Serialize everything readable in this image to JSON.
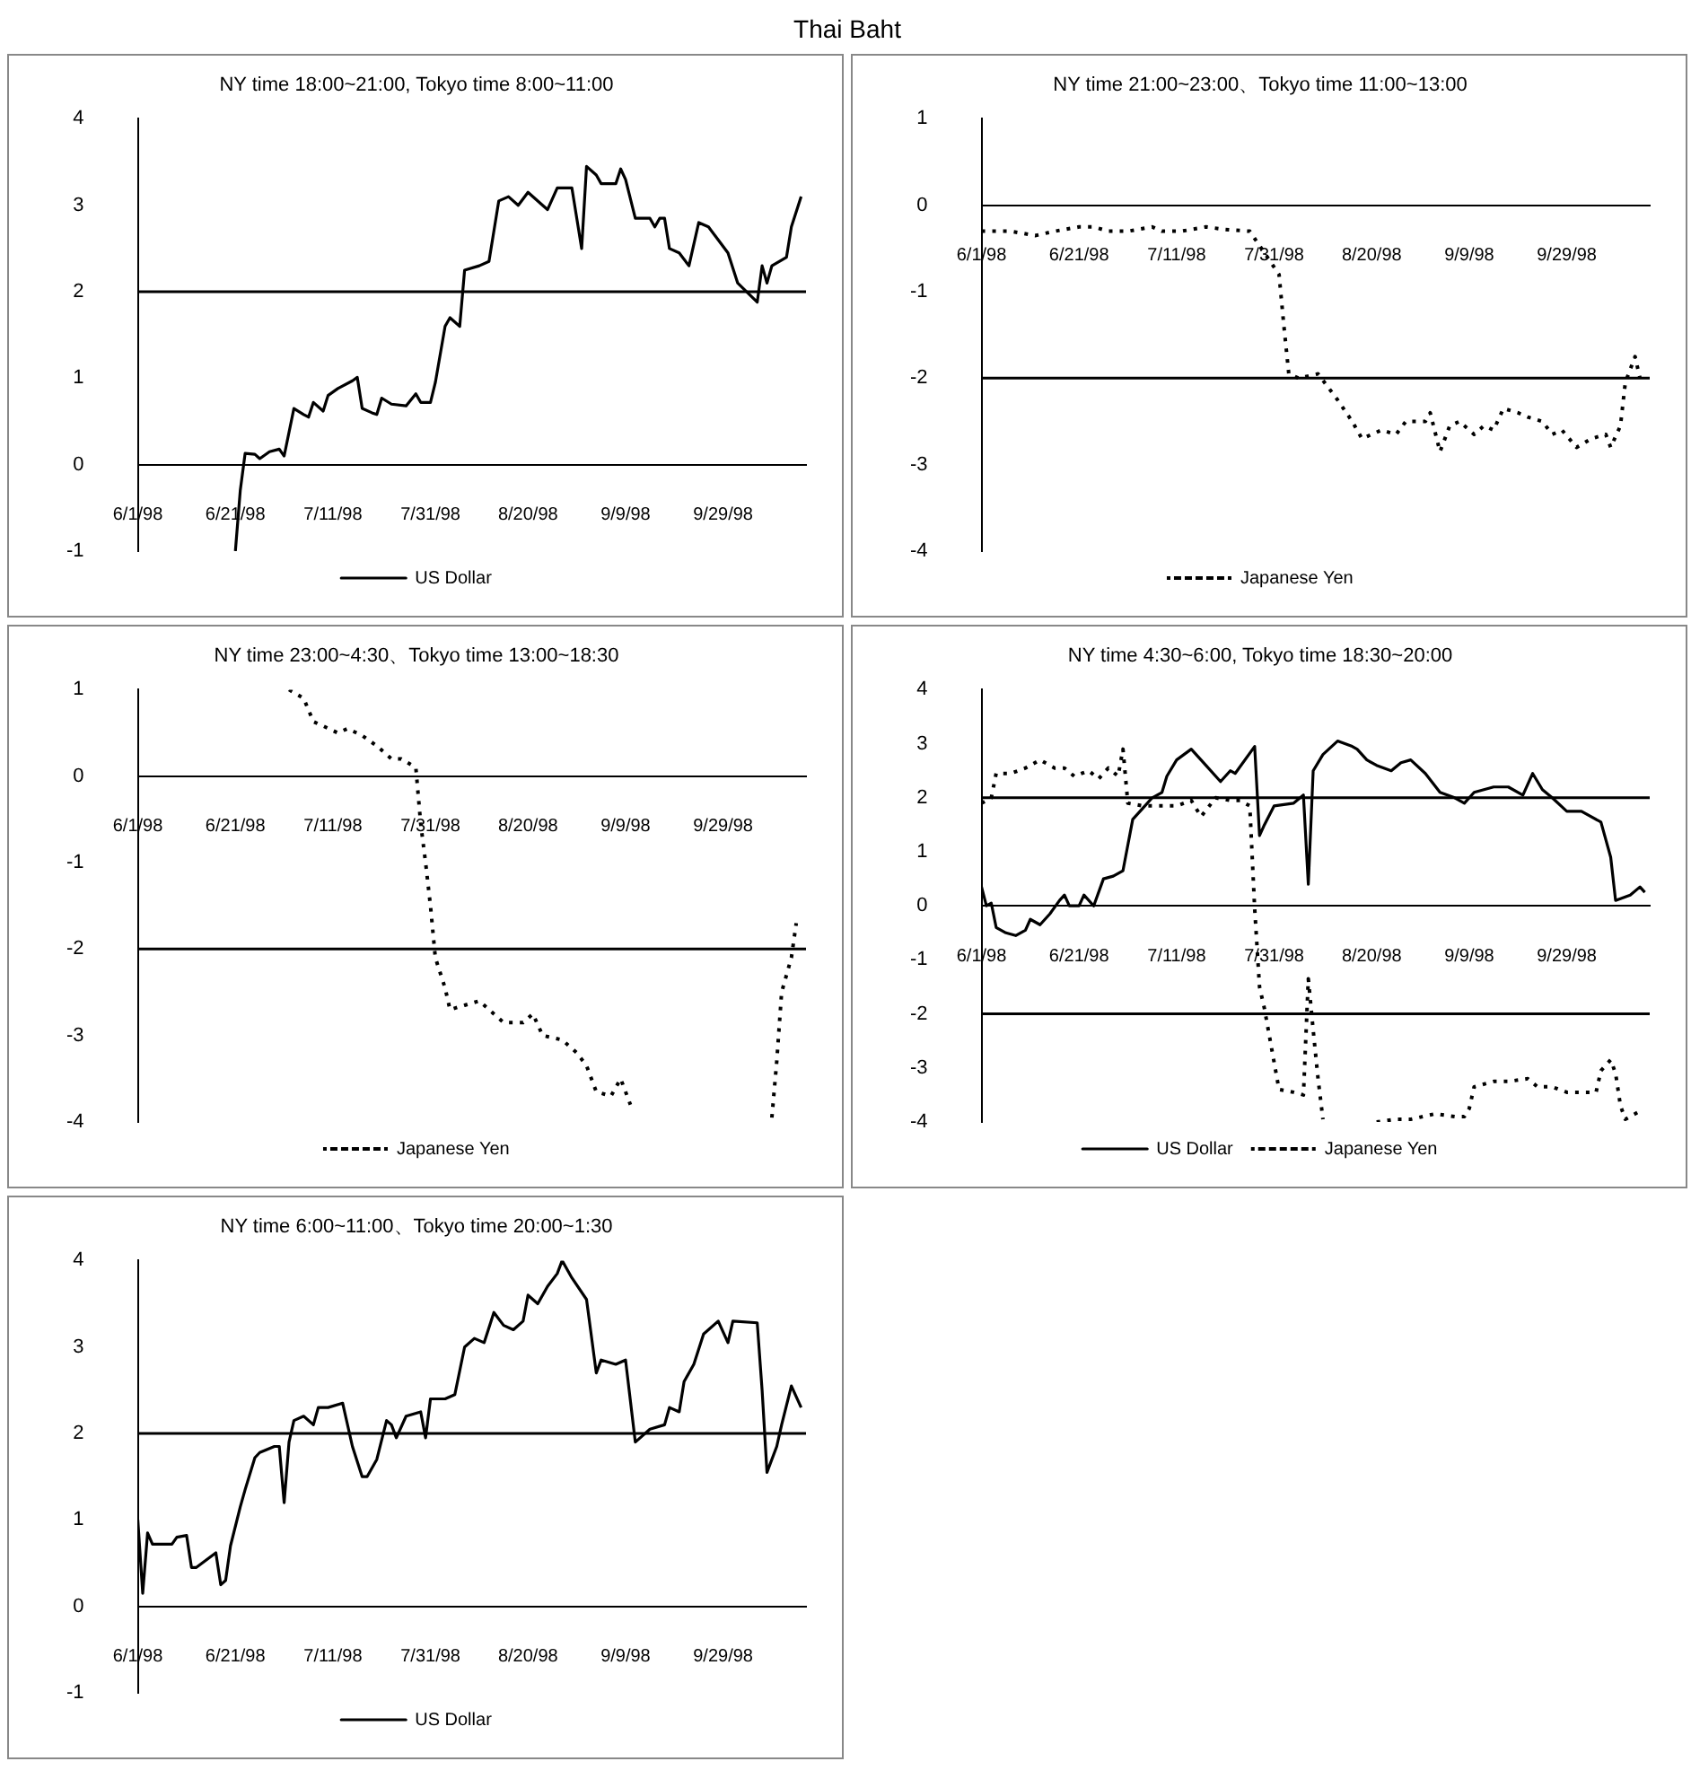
{
  "chart_data": [
    {
      "type": "other",
      "title": "Thai Baht"
    },
    {
      "type": "line",
      "title": "NY time 18:00~21:00, Tokyo time 8:00~11:00",
      "legend": "bottom",
      "grid": false,
      "marker": "none",
      "xlim": [
        "1998-06-01",
        "1998-10-16"
      ],
      "xticks": [
        {
          "value": "1998-06-01",
          "label": "6/1/98"
        },
        {
          "value": "1998-06-21",
          "label": "6/21/98"
        },
        {
          "value": "1998-07-11",
          "label": "7/11/98"
        },
        {
          "value": "1998-07-31",
          "label": "7/31/98"
        },
        {
          "value": "1998-08-20",
          "label": "8/20/98"
        },
        {
          "value": "1998-09-09",
          "label": "9/9/98"
        },
        {
          "value": "1998-09-29",
          "label": "9/29/98"
        }
      ],
      "ylim": [
        -1,
        4
      ],
      "yticks": [
        -1,
        0,
        1,
        2,
        3,
        4
      ],
      "ref_lines": [
        {
          "axis": "y",
          "value": 2,
          "color": "#000000"
        }
      ],
      "series": [
        {
          "name": "US Dollar",
          "color": "#000000",
          "line_style": "solid",
          "x": [
            "1998-06-21",
            "1998-06-22",
            "1998-06-23",
            "1998-06-25",
            "1998-06-26",
            "1998-06-28",
            "1998-06-30",
            "1998-07-01",
            "1998-07-03",
            "1998-07-05",
            "1998-07-06",
            "1998-07-07",
            "1998-07-09",
            "1998-07-10",
            "1998-07-12",
            "1998-07-15",
            "1998-07-16",
            "1998-07-17",
            "1998-07-19",
            "1998-07-20",
            "1998-07-21",
            "1998-07-23",
            "1998-07-26",
            "1998-07-28",
            "1998-07-29",
            "1998-07-31",
            "1998-08-01",
            "1998-08-03",
            "1998-08-04",
            "1998-08-05",
            "1998-08-06",
            "1998-08-07",
            "1998-08-10",
            "1998-08-12",
            "1998-08-14",
            "1998-08-16",
            "1998-08-18",
            "1998-08-20",
            "1998-08-23",
            "1998-08-24",
            "1998-08-26",
            "1998-08-29",
            "1998-08-31",
            "1998-09-01",
            "1998-09-03",
            "1998-09-04",
            "1998-09-07",
            "1998-09-08",
            "1998-09-09",
            "1998-09-11",
            "1998-09-14",
            "1998-09-15",
            "1998-09-16",
            "1998-09-17",
            "1998-09-18",
            "1998-09-20",
            "1998-09-22",
            "1998-09-24",
            "1998-09-26",
            "1998-09-28",
            "1998-09-30",
            "1998-10-02",
            "1998-10-06",
            "1998-10-07",
            "1998-10-08",
            "1998-10-09",
            "1998-10-12",
            "1998-10-13",
            "1998-10-15"
          ],
          "values": [
            -1.0,
            -0.3,
            0.13,
            0.12,
            0.07,
            0.15,
            0.18,
            0.1,
            0.65,
            0.58,
            0.55,
            0.72,
            0.62,
            0.8,
            0.88,
            0.97,
            1.01,
            0.65,
            0.6,
            0.58,
            0.77,
            0.7,
            0.68,
            0.82,
            0.72,
            0.72,
            0.95,
            1.6,
            1.7,
            1.65,
            1.6,
            2.25,
            2.3,
            2.35,
            3.05,
            3.1,
            3.0,
            3.15,
            3.0,
            2.95,
            3.2,
            3.2,
            2.5,
            3.45,
            3.35,
            3.25,
            3.25,
            3.42,
            3.3,
            2.85,
            2.85,
            2.75,
            2.85,
            2.85,
            2.5,
            2.45,
            2.3,
            2.8,
            2.75,
            2.6,
            2.45,
            2.1,
            1.88,
            2.3,
            2.1,
            2.3,
            2.4,
            2.75,
            3.1
          ]
        }
      ]
    },
    {
      "type": "line",
      "title": "NY time 21:00~23:00、Tokyo time 11:00~13:00",
      "legend": "bottom",
      "grid": false,
      "marker": "none",
      "xlim": [
        "1998-06-01",
        "1998-10-16"
      ],
      "xticks": [
        {
          "value": "1998-06-01",
          "label": "6/1/98"
        },
        {
          "value": "1998-06-21",
          "label": "6/21/98"
        },
        {
          "value": "1998-07-11",
          "label": "7/11/98"
        },
        {
          "value": "1998-07-31",
          "label": "7/31/98"
        },
        {
          "value": "1998-08-20",
          "label": "8/20/98"
        },
        {
          "value": "1998-09-09",
          "label": "9/9/98"
        },
        {
          "value": "1998-09-29",
          "label": "9/29/98"
        }
      ],
      "ylim": [
        -4,
        1
      ],
      "yticks": [
        -4,
        -3,
        -2,
        -1,
        0,
        1
      ],
      "ref_lines": [
        {
          "axis": "y",
          "value": -2,
          "color": "#000000"
        }
      ],
      "series": [
        {
          "name": "Japanese Yen",
          "color": "#000000",
          "line_style": "dotted",
          "x": [
            "1998-06-01",
            "1998-06-07",
            "1998-06-12",
            "1998-06-16",
            "1998-06-21",
            "1998-06-24",
            "1998-06-27",
            "1998-07-01",
            "1998-07-06",
            "1998-07-08",
            "1998-07-12",
            "1998-07-17",
            "1998-07-21",
            "1998-07-26",
            "1998-08-01",
            "1998-08-02",
            "1998-08-03",
            "1998-08-05",
            "1998-08-09",
            "1998-08-11",
            "1998-08-13",
            "1998-08-16",
            "1998-08-18",
            "1998-08-22",
            "1998-08-25",
            "1998-08-27",
            "1998-08-31",
            "1998-09-01",
            "1998-09-03",
            "1998-09-05",
            "1998-09-07",
            "1998-09-10",
            "1998-09-12",
            "1998-09-14",
            "1998-09-16",
            "1998-09-19",
            "1998-09-21",
            "1998-09-24",
            "1998-09-26",
            "1998-09-28",
            "1998-10-01",
            "1998-10-04",
            "1998-10-07",
            "1998-10-08",
            "1998-10-10",
            "1998-10-11",
            "1998-10-13",
            "1998-10-14"
          ],
          "values": [
            -0.3,
            -0.3,
            -0.35,
            -0.3,
            -0.25,
            -0.25,
            -0.3,
            -0.3,
            -0.25,
            -0.3,
            -0.3,
            -0.25,
            -0.28,
            -0.3,
            -0.8,
            -1.4,
            -1.95,
            -2.0,
            -1.95,
            -2.1,
            -2.25,
            -2.5,
            -2.7,
            -2.6,
            -2.65,
            -2.5,
            -2.5,
            -2.4,
            -2.85,
            -2.55,
            -2.5,
            -2.65,
            -2.55,
            -2.6,
            -2.35,
            -2.4,
            -2.45,
            -2.5,
            -2.65,
            -2.6,
            -2.8,
            -2.7,
            -2.65,
            -2.8,
            -2.55,
            -2.05,
            -1.75,
            -2.0
          ]
        }
      ]
    },
    {
      "type": "line",
      "title": "NY time 23:00~4:30、Tokyo time 13:00~18:30",
      "legend": "bottom",
      "grid": false,
      "marker": "none",
      "xlim": [
        "1998-06-01",
        "1998-10-16"
      ],
      "xticks": [
        {
          "value": "1998-06-01",
          "label": "6/1/98"
        },
        {
          "value": "1998-06-21",
          "label": "6/21/98"
        },
        {
          "value": "1998-07-11",
          "label": "7/11/98"
        },
        {
          "value": "1998-07-31",
          "label": "7/31/98"
        },
        {
          "value": "1998-08-20",
          "label": "8/20/98"
        },
        {
          "value": "1998-09-09",
          "label": "9/9/98"
        },
        {
          "value": "1998-09-29",
          "label": "9/29/98"
        }
      ],
      "ylim": [
        -4,
        1
      ],
      "yticks": [
        -4,
        -3,
        -2,
        -1,
        0,
        1
      ],
      "ref_lines": [
        {
          "axis": "y",
          "value": -2,
          "color": "#000000"
        }
      ],
      "series": [
        {
          "name": "Japanese Yen",
          "color": "#000000",
          "line_style": "dotted",
          "x": [
            "1998-07-02",
            "1998-07-05",
            "1998-07-07",
            "1998-07-09",
            "1998-07-12",
            "1998-07-14",
            "1998-07-17",
            "1998-07-20",
            "1998-07-23",
            "1998-07-25",
            "1998-07-28",
            "1998-07-29",
            "1998-07-30",
            "1998-07-31",
            "1998-08-01",
            "1998-08-03",
            "1998-08-04",
            "1998-08-07",
            "1998-08-10",
            "1998-08-12",
            "1998-08-15",
            "1998-08-19",
            "1998-08-21",
            "1998-08-23",
            "1998-08-27",
            "1998-08-30",
            "1998-09-01",
            "1998-09-03",
            "1998-09-06",
            "1998-09-08",
            "1998-09-10",
            "1998-09-25",
            "1998-10-09",
            "1998-10-10",
            "1998-10-11",
            "1998-10-13",
            "1998-10-14"
          ],
          "values": [
            1.0,
            0.9,
            0.63,
            0.58,
            0.5,
            0.55,
            0.47,
            0.35,
            0.2,
            0.2,
            0.1,
            -0.55,
            -1.0,
            -1.5,
            -2.1,
            -2.45,
            -2.7,
            -2.65,
            -2.6,
            -2.7,
            -2.85,
            -2.85,
            -2.75,
            -3.0,
            -3.05,
            -3.2,
            -3.35,
            -3.65,
            -3.7,
            -3.5,
            -3.8,
            null,
            -3.95,
            -3.3,
            -2.5,
            -2.1,
            -1.7
          ]
        }
      ]
    },
    {
      "type": "line",
      "title": "NY time 4:30~6:00, Tokyo time 18:30~20:00",
      "legend": "bottom",
      "grid": false,
      "marker": "none",
      "xlim": [
        "1998-06-01",
        "1998-10-16"
      ],
      "xticks": [
        {
          "value": "1998-06-01",
          "label": "6/1/98"
        },
        {
          "value": "1998-06-21",
          "label": "6/21/98"
        },
        {
          "value": "1998-07-11",
          "label": "7/11/98"
        },
        {
          "value": "1998-07-31",
          "label": "7/31/98"
        },
        {
          "value": "1998-08-20",
          "label": "8/20/98"
        },
        {
          "value": "1998-09-09",
          "label": "9/9/98"
        },
        {
          "value": "1998-09-29",
          "label": "9/29/98"
        }
      ],
      "ylim": [
        -4,
        4
      ],
      "yticks": [
        -4,
        -3,
        -2,
        -1,
        0,
        1,
        2,
        3,
        4
      ],
      "ref_lines": [
        {
          "axis": "y",
          "value": 2,
          "color": "#000000"
        },
        {
          "axis": "y",
          "value": -2,
          "color": "#000000"
        }
      ],
      "series": [
        {
          "name": "US Dollar",
          "color": "#000000",
          "line_style": "solid",
          "x": [
            "1998-06-01",
            "1998-06-02",
            "1998-06-03",
            "1998-06-04",
            "1998-06-06",
            "1998-06-08",
            "1998-06-10",
            "1998-06-11",
            "1998-06-13",
            "1998-06-15",
            "1998-06-17",
            "1998-06-18",
            "1998-06-19",
            "1998-06-21",
            "1998-06-22",
            "1998-06-24",
            "1998-06-26",
            "1998-06-28",
            "1998-06-30",
            "1998-07-02",
            "1998-07-04",
            "1998-07-06",
            "1998-07-08",
            "1998-07-09",
            "1998-07-11",
            "1998-07-14",
            "1998-07-17",
            "1998-07-20",
            "1998-07-22",
            "1998-07-23",
            "1998-07-27",
            "1998-07-28",
            "1998-07-29",
            "1998-07-31",
            "1998-08-04",
            "1998-08-06",
            "1998-08-07",
            "1998-08-08",
            "1998-08-10",
            "1998-08-13",
            "1998-08-16",
            "1998-08-17",
            "1998-08-19",
            "1998-08-21",
            "1998-08-24",
            "1998-08-26",
            "1998-08-28",
            "1998-08-31",
            "1998-09-03",
            "1998-09-06",
            "1998-09-08",
            "1998-09-10",
            "1998-09-14",
            "1998-09-17",
            "1998-09-20",
            "1998-09-22",
            "1998-09-24",
            "1998-09-26",
            "1998-09-29",
            "1998-10-02",
            "1998-10-06",
            "1998-10-08",
            "1998-10-09",
            "1998-10-12",
            "1998-10-14",
            "1998-10-15"
          ],
          "values": [
            0.35,
            0.0,
            0.05,
            -0.4,
            -0.5,
            -0.55,
            -0.45,
            -0.25,
            -0.35,
            -0.15,
            0.1,
            0.2,
            0.0,
            0.0,
            0.2,
            0.0,
            0.5,
            0.55,
            0.65,
            1.6,
            1.8,
            2.0,
            2.1,
            2.4,
            2.7,
            2.9,
            2.6,
            2.3,
            2.5,
            2.45,
            2.95,
            1.3,
            1.5,
            1.85,
            1.9,
            2.05,
            0.4,
            2.5,
            2.8,
            3.05,
            2.95,
            2.9,
            2.7,
            2.6,
            2.5,
            2.65,
            2.7,
            2.45,
            2.1,
            2.0,
            1.9,
            2.1,
            2.2,
            2.2,
            2.05,
            2.45,
            2.15,
            2.0,
            1.75,
            1.75,
            1.55,
            0.9,
            0.1,
            0.2,
            0.35,
            0.25
          ]
        },
        {
          "name": "Japanese Yen",
          "color": "#000000",
          "line_style": "dotted",
          "x": [
            "1998-06-01",
            "1998-06-03",
            "1998-06-04",
            "1998-06-07",
            "1998-06-10",
            "1998-06-13",
            "1998-06-16",
            "1998-06-18",
            "1998-06-20",
            "1998-06-23",
            "1998-06-25",
            "1998-06-27",
            "1998-06-29",
            "1998-06-30",
            "1998-07-01",
            "1998-07-04",
            "1998-07-07",
            "1998-07-11",
            "1998-07-14",
            "1998-07-16",
            "1998-07-19",
            "1998-07-22",
            "1998-07-24",
            "1998-07-26",
            "1998-07-27",
            "1998-07-28",
            "1998-07-29",
            "1998-07-30",
            "1998-07-31",
            "1998-08-01",
            "1998-08-04",
            "1998-08-06",
            "1998-08-07",
            "1998-08-08",
            "1998-08-09",
            "1998-08-10",
            "1998-08-15",
            "1998-08-21",
            "1998-08-25",
            "1998-08-28",
            "1998-09-02",
            "1998-09-06",
            "1998-09-08",
            "1998-09-09",
            "1998-09-10",
            "1998-09-14",
            "1998-09-17",
            "1998-09-21",
            "1998-09-23",
            "1998-09-26",
            "1998-09-29",
            "1998-10-02",
            "1998-10-05",
            "1998-10-06",
            "1998-10-08",
            "1998-10-09",
            "1998-10-10",
            "1998-10-11",
            "1998-10-14"
          ],
          "values": [
            1.9,
            2.0,
            2.45,
            2.45,
            2.55,
            2.7,
            2.55,
            2.55,
            2.4,
            2.5,
            2.35,
            2.55,
            2.4,
            2.9,
            1.9,
            1.85,
            1.85,
            1.85,
            1.95,
            1.65,
            2.0,
            1.95,
            1.95,
            1.85,
            -0.05,
            -1.5,
            -1.9,
            -2.4,
            -2.9,
            -3.4,
            -3.45,
            -3.5,
            -1.35,
            -2.3,
            -3.2,
            -3.95,
            null,
            -4.0,
            -3.95,
            -3.95,
            -3.85,
            -3.9,
            -3.9,
            -3.75,
            -3.35,
            -3.25,
            -3.25,
            -3.2,
            -3.35,
            -3.35,
            -3.45,
            -3.45,
            -3.45,
            -3.05,
            -2.85,
            -3.1,
            -3.7,
            -3.95,
            -3.8
          ]
        }
      ]
    },
    {
      "type": "line",
      "title": "NY time 6:00~11:00、Tokyo time 20:00~1:30",
      "legend": "bottom",
      "grid": false,
      "marker": "none",
      "xlim": [
        "1998-06-01",
        "1998-10-16"
      ],
      "xticks": [
        {
          "value": "1998-06-01",
          "label": "6/1/98"
        },
        {
          "value": "1998-06-21",
          "label": "6/21/98"
        },
        {
          "value": "1998-07-11",
          "label": "7/11/98"
        },
        {
          "value": "1998-07-31",
          "label": "7/31/98"
        },
        {
          "value": "1998-08-20",
          "label": "8/20/98"
        },
        {
          "value": "1998-09-09",
          "label": "9/9/98"
        },
        {
          "value": "1998-09-29",
          "label": "9/29/98"
        }
      ],
      "ylim": [
        -1,
        4
      ],
      "yticks": [
        -1,
        0,
        1,
        2,
        3,
        4
      ],
      "ref_lines": [
        {
          "axis": "y",
          "value": 2,
          "color": "#000000"
        }
      ],
      "series": [
        {
          "name": "US Dollar",
          "color": "#000000",
          "line_style": "solid",
          "x": [
            "1998-06-01",
            "1998-06-02",
            "1998-06-03",
            "1998-06-04",
            "1998-06-08",
            "1998-06-09",
            "1998-06-11",
            "1998-06-12",
            "1998-06-13",
            "1998-06-17",
            "1998-06-18",
            "1998-06-19",
            "1998-06-20",
            "1998-06-22",
            "1998-06-23",
            "1998-06-25",
            "1998-06-26",
            "1998-06-29",
            "1998-06-30",
            "1998-07-01",
            "1998-07-02",
            "1998-07-03",
            "1998-07-05",
            "1998-07-07",
            "1998-07-08",
            "1998-07-10",
            "1998-07-13",
            "1998-07-15",
            "1998-07-17",
            "1998-07-18",
            "1998-07-20",
            "1998-07-22",
            "1998-07-23",
            "1998-07-24",
            "1998-07-26",
            "1998-07-29",
            "1998-07-30",
            "1998-07-31",
            "1998-08-03",
            "1998-08-05",
            "1998-08-07",
            "1998-08-09",
            "1998-08-11",
            "1998-08-13",
            "1998-08-15",
            "1998-08-17",
            "1998-08-19",
            "1998-08-20",
            "1998-08-22",
            "1998-08-24",
            "1998-08-26",
            "1998-08-27",
            "1998-08-29",
            "1998-09-01",
            "1998-09-03",
            "1998-09-04",
            "1998-09-07",
            "1998-09-09",
            "1998-09-11",
            "1998-09-12",
            "1998-09-14",
            "1998-09-17",
            "1998-09-18",
            "1998-09-20",
            "1998-09-21",
            "1998-09-23",
            "1998-09-25",
            "1998-09-28",
            "1998-09-30",
            "1998-10-01",
            "1998-10-06",
            "1998-10-07",
            "1998-10-08",
            "1998-10-10",
            "1998-10-11",
            "1998-10-13",
            "1998-10-15"
          ],
          "values": [
            1.0,
            0.15,
            0.85,
            0.72,
            0.72,
            0.8,
            0.82,
            0.45,
            0.45,
            0.62,
            0.25,
            0.3,
            0.7,
            1.15,
            1.35,
            1.72,
            1.78,
            1.85,
            1.85,
            1.2,
            1.9,
            2.15,
            2.2,
            2.1,
            2.3,
            2.3,
            2.35,
            1.85,
            1.5,
            1.5,
            1.7,
            2.15,
            2.1,
            1.95,
            2.2,
            2.25,
            1.95,
            2.4,
            2.4,
            2.45,
            3.0,
            3.1,
            3.05,
            3.4,
            3.25,
            3.2,
            3.3,
            3.6,
            3.5,
            3.7,
            3.85,
            4.0,
            3.8,
            3.55,
            2.7,
            2.85,
            2.8,
            2.85,
            1.9,
            1.95,
            2.05,
            2.1,
            2.3,
            2.25,
            2.6,
            2.8,
            3.15,
            3.3,
            3.05,
            3.3,
            3.28,
            2.5,
            1.55,
            1.85,
            2.1,
            2.55,
            2.3
          ]
        }
      ]
    }
  ]
}
